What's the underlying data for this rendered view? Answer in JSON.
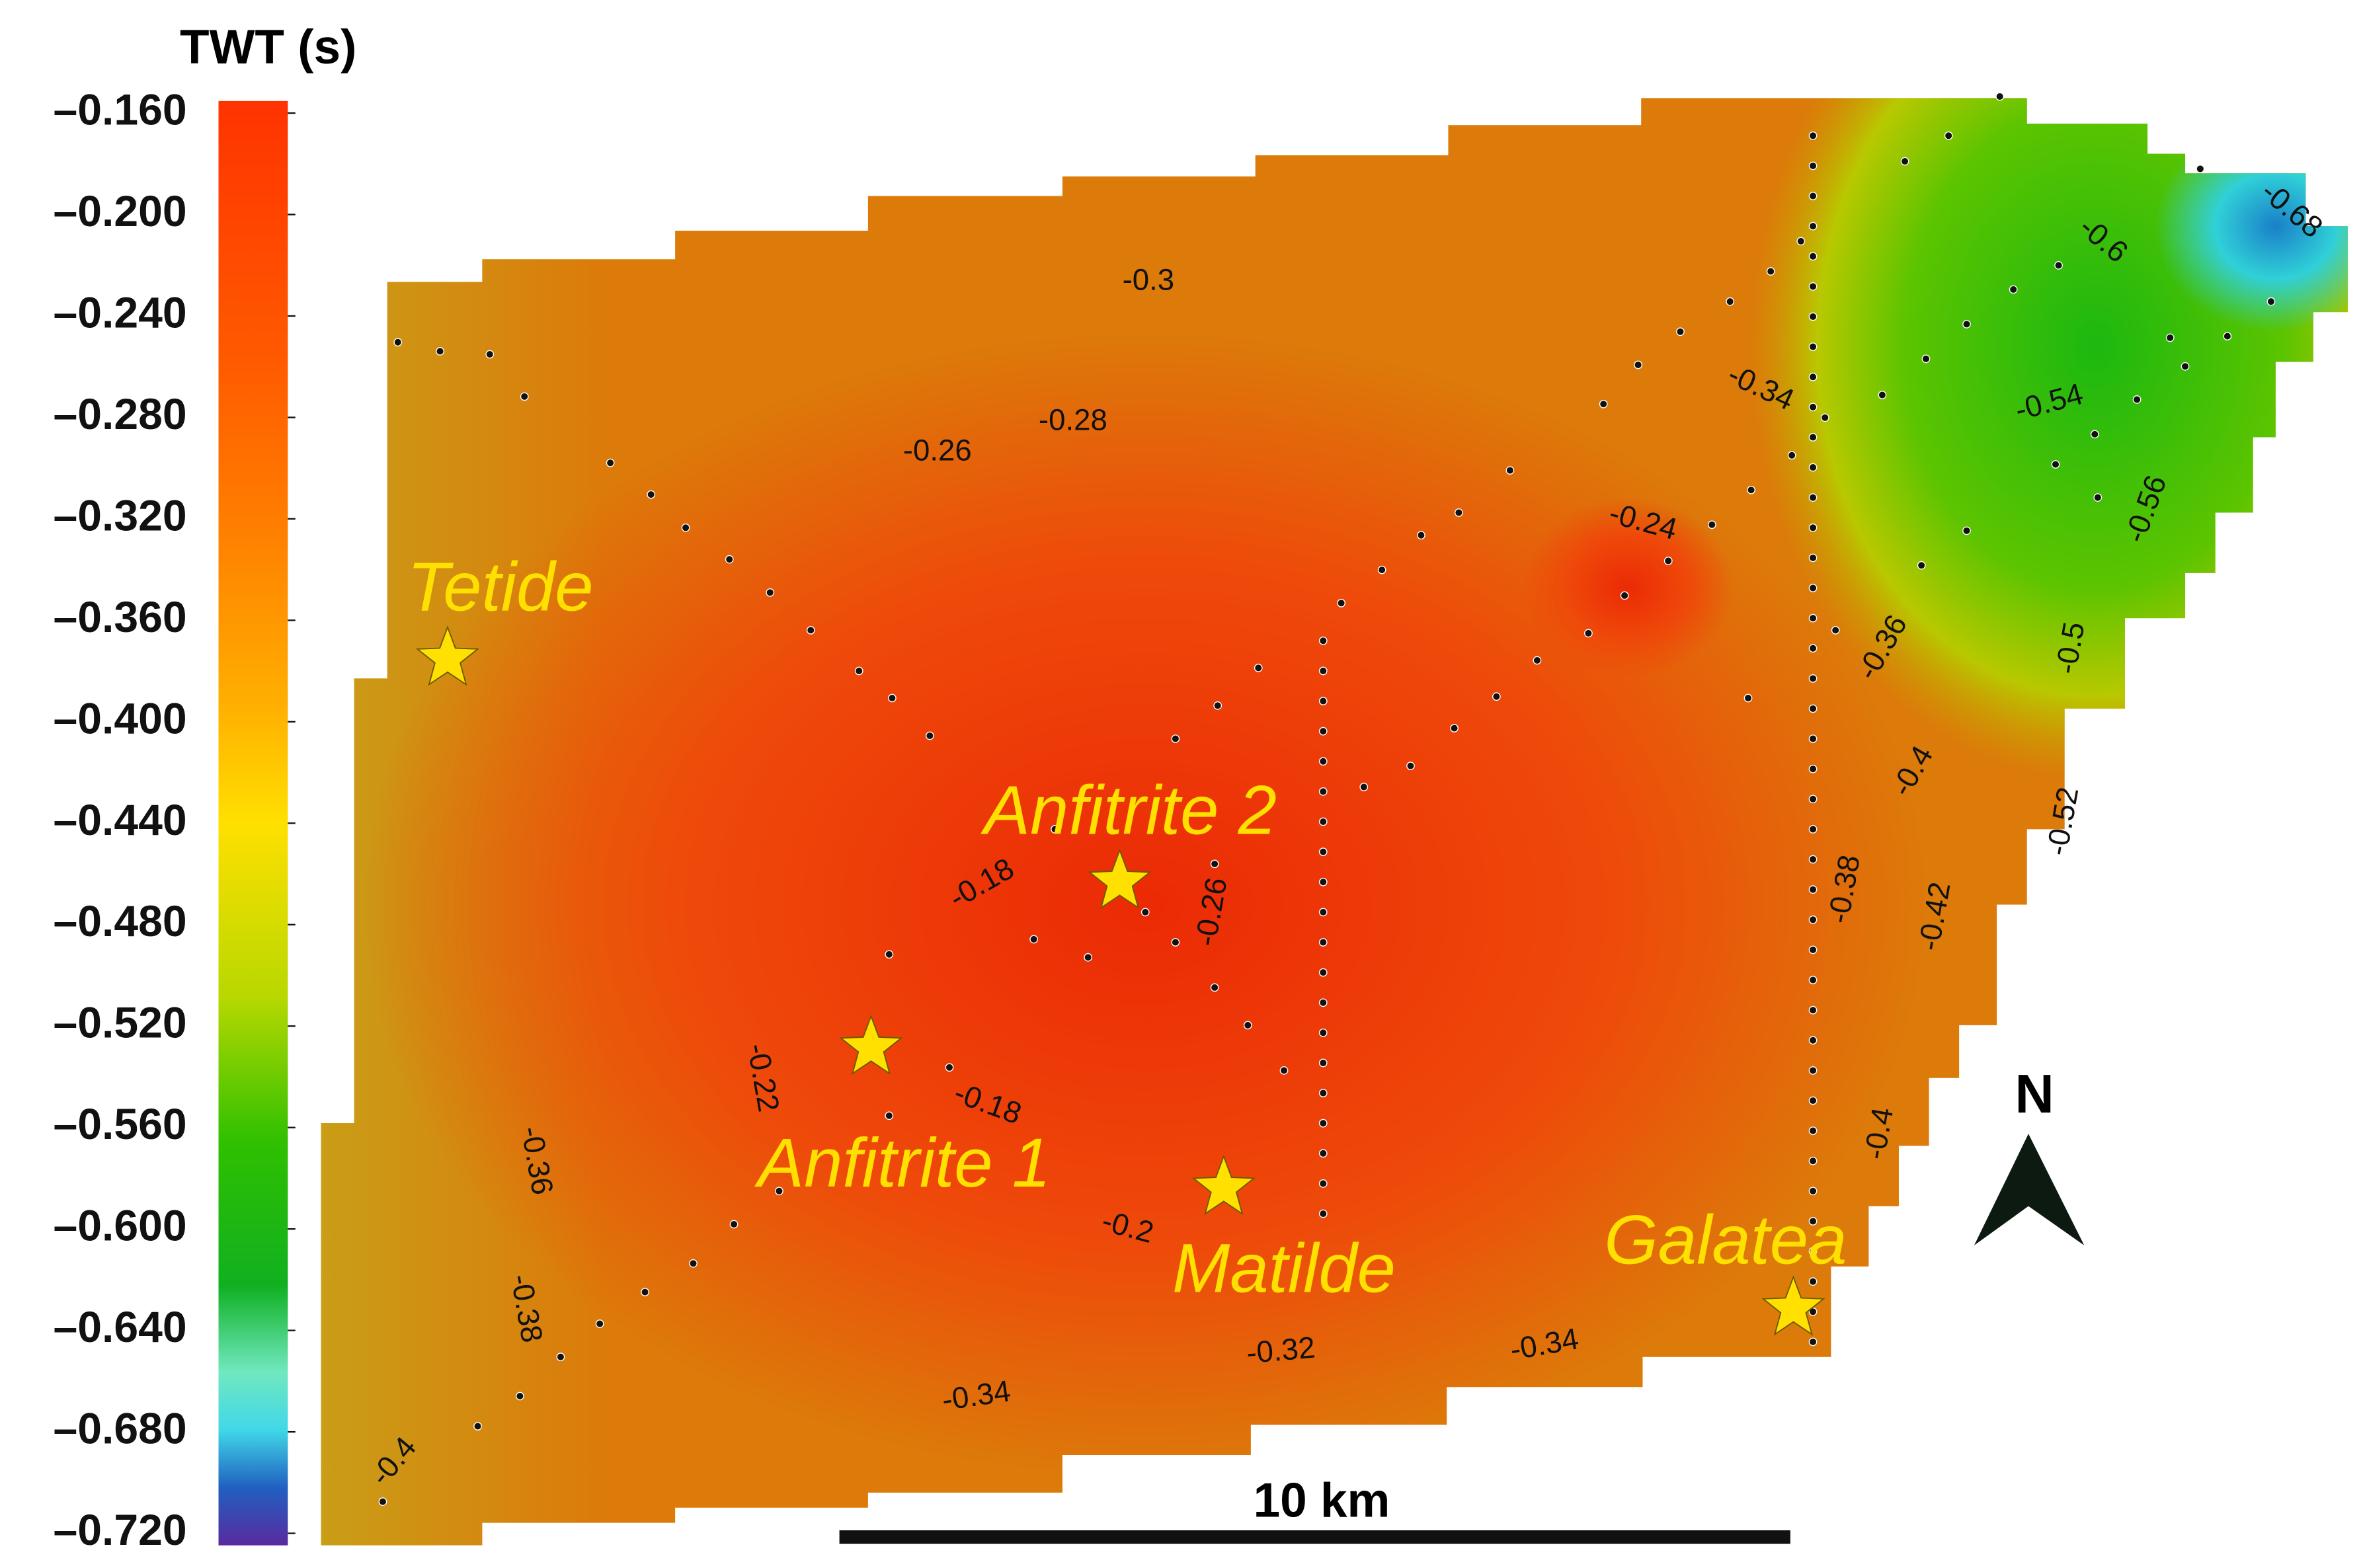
{
  "colorbar": {
    "title": "TWT (s)",
    "range": [
      -0.16,
      -0.72
    ],
    "ticks": [
      {
        "value": -0.16,
        "label": "–0.160"
      },
      {
        "value": -0.2,
        "label": "–0.200"
      },
      {
        "value": -0.24,
        "label": "–0.240"
      },
      {
        "value": -0.28,
        "label": "–0.280"
      },
      {
        "value": -0.32,
        "label": "–0.320"
      },
      {
        "value": -0.36,
        "label": "–0.360"
      },
      {
        "value": -0.4,
        "label": "–0.400"
      },
      {
        "value": -0.44,
        "label": "–0.440"
      },
      {
        "value": -0.48,
        "label": "–0.480"
      },
      {
        "value": -0.52,
        "label": "–0.520"
      },
      {
        "value": -0.56,
        "label": "–0.560"
      },
      {
        "value": -0.6,
        "label": "–0.600"
      },
      {
        "value": -0.64,
        "label": "–0.640"
      },
      {
        "value": -0.68,
        "label": "–0.680"
      },
      {
        "value": -0.72,
        "label": "–0.720"
      }
    ]
  },
  "wells": [
    {
      "label": "Tetide"
    },
    {
      "label": "Anfitrite 2"
    },
    {
      "label": "Anfitrite 1"
    },
    {
      "label": "Matilde"
    },
    {
      "label": "Galatea"
    }
  ],
  "contour_labels": [
    "-0.3",
    "-0.28",
    "-0.26",
    "-0.24",
    "-0.34",
    "-0.54",
    "-0.6",
    "-0.68",
    "-0.56",
    "-0.36",
    "-0.5",
    "-0.4",
    "-0.52",
    "-0.38",
    "-0.42",
    "-0.18",
    "-0.26",
    "-0.22",
    "-0.18",
    "-0.36",
    "-0.2",
    "-0.4",
    "-0.38",
    "-0.32",
    "-0.34",
    "-0.34",
    "-0.4"
  ],
  "scale_bar": "10 km",
  "north": "N"
}
